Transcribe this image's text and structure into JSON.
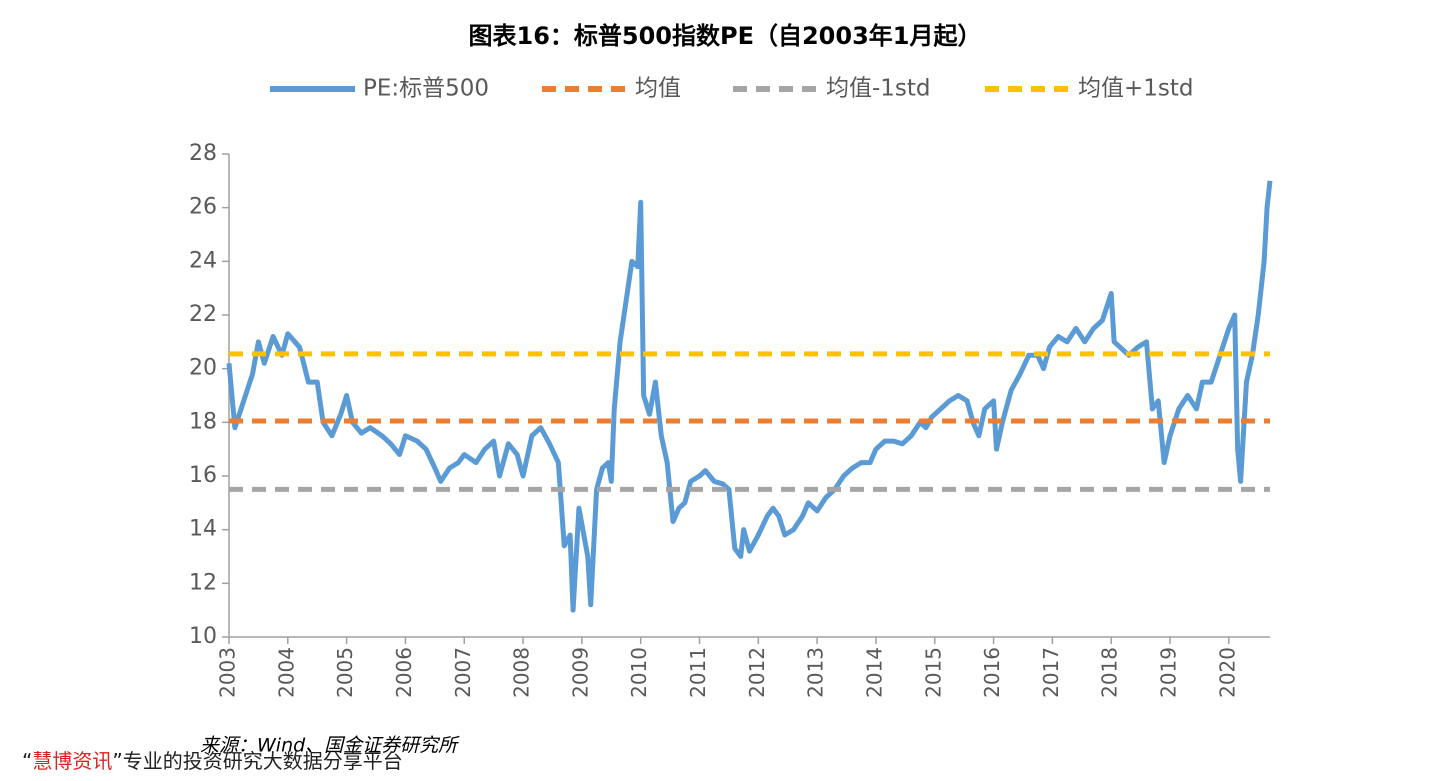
{
  "chart_data": {
    "type": "line",
    "title": "图表16：标普500指数PE（自2003年1月起）",
    "xlim": [
      2003,
      2020.7
    ],
    "xticks": [
      2003,
      2004,
      2005,
      2006,
      2007,
      2008,
      2009,
      2010,
      2011,
      2012,
      2013,
      2014,
      2015,
      2016,
      2017,
      2018,
      2019,
      2020
    ],
    "ylim": [
      10,
      28
    ],
    "yticks": [
      10,
      12,
      14,
      16,
      18,
      20,
      22,
      24,
      26,
      28
    ],
    "legend": "top",
    "series": [
      {
        "name": "PE:标普500",
        "color": "#5b9bd5",
        "x": [
          2003.0,
          2003.1,
          2003.25,
          2003.4,
          2003.5,
          2003.6,
          2003.75,
          2003.9,
          2004.0,
          2004.2,
          2004.35,
          2004.5,
          2004.6,
          2004.75,
          2004.9,
          2005.0,
          2005.1,
          2005.25,
          2005.4,
          2005.6,
          2005.75,
          2005.9,
          2006.0,
          2006.2,
          2006.35,
          2006.5,
          2006.6,
          2006.75,
          2006.9,
          2007.0,
          2007.2,
          2007.35,
          2007.5,
          2007.6,
          2007.75,
          2007.9,
          2008.0,
          2008.15,
          2008.3,
          2008.45,
          2008.6,
          2008.7,
          2008.8,
          2008.85,
          2008.95,
          2009.1,
          2009.15,
          2009.25,
          2009.35,
          2009.45,
          2009.5,
          2009.55,
          2009.65,
          2009.75,
          2009.85,
          2009.95,
          2010.0,
          2010.05,
          2010.15,
          2010.25,
          2010.35,
          2010.45,
          2010.55,
          2010.65,
          2010.75,
          2010.85,
          2011.0,
          2011.1,
          2011.25,
          2011.4,
          2011.5,
          2011.6,
          2011.7,
          2011.75,
          2011.85,
          2012.0,
          2012.15,
          2012.25,
          2012.35,
          2012.45,
          2012.6,
          2012.75,
          2012.85,
          2013.0,
          2013.15,
          2013.3,
          2013.45,
          2013.6,
          2013.75,
          2013.9,
          2014.0,
          2014.15,
          2014.3,
          2014.45,
          2014.6,
          2014.75,
          2014.85,
          2014.95,
          2015.1,
          2015.25,
          2015.4,
          2015.55,
          2015.65,
          2015.75,
          2015.85,
          2016.0,
          2016.05,
          2016.15,
          2016.3,
          2016.45,
          2016.6,
          2016.75,
          2016.85,
          2016.95,
          2017.1,
          2017.25,
          2017.4,
          2017.55,
          2017.7,
          2017.85,
          2018.0,
          2018.05,
          2018.15,
          2018.3,
          2018.45,
          2018.6,
          2018.7,
          2018.8,
          2018.9,
          2019.0,
          2019.15,
          2019.3,
          2019.45,
          2019.55,
          2019.7,
          2019.85,
          2020.0,
          2020.1,
          2020.15,
          2020.2,
          2020.3,
          2020.4,
          2020.5,
          2020.6,
          2020.65,
          2020.7
        ],
        "values": [
          20.2,
          17.8,
          18.8,
          19.8,
          21.0,
          20.2,
          21.2,
          20.5,
          21.3,
          20.8,
          19.5,
          19.5,
          18.0,
          17.5,
          18.3,
          19.0,
          18.0,
          17.6,
          17.8,
          17.5,
          17.2,
          16.8,
          17.5,
          17.3,
          17.0,
          16.3,
          15.8,
          16.3,
          16.5,
          16.8,
          16.5,
          17.0,
          17.3,
          16.0,
          17.2,
          16.8,
          16.0,
          17.5,
          17.8,
          17.2,
          16.5,
          13.4,
          13.8,
          11.0,
          14.8,
          13.0,
          11.2,
          15.5,
          16.3,
          16.5,
          15.8,
          18.5,
          21.0,
          22.5,
          24.0,
          23.8,
          26.2,
          19.0,
          18.3,
          19.5,
          17.5,
          16.5,
          14.3,
          14.8,
          15.0,
          15.8,
          16.0,
          16.2,
          15.8,
          15.7,
          15.5,
          13.3,
          13.0,
          14.0,
          13.2,
          13.8,
          14.5,
          14.8,
          14.5,
          13.8,
          14.0,
          14.5,
          15.0,
          14.7,
          15.2,
          15.5,
          16.0,
          16.3,
          16.5,
          16.5,
          17.0,
          17.3,
          17.3,
          17.2,
          17.5,
          18.0,
          17.8,
          18.2,
          18.5,
          18.8,
          19.0,
          18.8,
          18.0,
          17.5,
          18.5,
          18.8,
          17.0,
          18.0,
          19.2,
          19.8,
          20.5,
          20.5,
          20.0,
          20.8,
          21.2,
          21.0,
          21.5,
          21.0,
          21.5,
          21.8,
          22.8,
          21.0,
          20.8,
          20.5,
          20.8,
          21.0,
          18.5,
          18.8,
          16.5,
          17.5,
          18.5,
          19.0,
          18.5,
          19.5,
          19.5,
          20.5,
          21.5,
          22.0,
          17.0,
          15.8,
          19.5,
          20.5,
          22.0,
          24.0,
          26.0,
          27.0
        ]
      },
      {
        "name": "均值",
        "color": "#ed7d31",
        "value": 18.05
      },
      {
        "name": "均值-1std",
        "color": "#a5a5a5",
        "value": 15.5
      },
      {
        "name": "均值+1std",
        "color": "#ffc000",
        "value": 20.55
      }
    ]
  },
  "source": "来源：Wind、国金证券研究所",
  "watermark": {
    "open": "“",
    "brand": "慧博资讯",
    "rest": "”专业的投资研究大数据分享平台"
  }
}
